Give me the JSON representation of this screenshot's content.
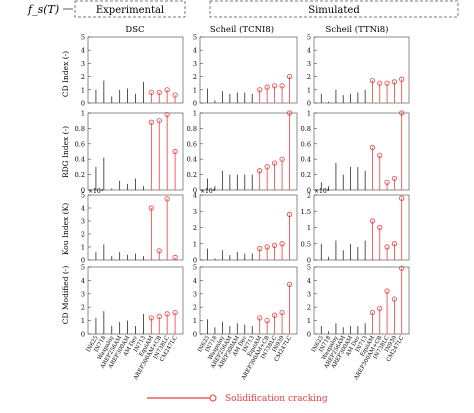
{
  "header": {
    "fs_label": "f_s(T)",
    "group_experimental": "Experimental",
    "group_simulated": "Simulated"
  },
  "columns": [
    "DSC",
    "Scheil (TCNI8)",
    "Scheil (TTNi8)"
  ],
  "row_labels": [
    "CD Index (-)",
    "RDG Index (-)",
    "Kou Index (K)",
    "CD Modified (-)"
  ],
  "exponent_labels": [
    "×10⁴",
    "×10⁴",
    "×10⁴"
  ],
  "alloys_experimental": [
    "IN625",
    "IN718",
    "Waspaloy",
    "AREP256AM",
    "AREP300AM",
    "AM Dev",
    "IN713",
    "EquiAM",
    "AREP300AM+CB",
    "IN738LC",
    "CM247LC"
  ],
  "alloys_simulated": [
    "IN625",
    "IN718",
    "Waspaloy",
    "AREP256AM",
    "AREP300AM",
    "AM Dev",
    "IN713",
    "EquiAM",
    "AREP300AM+CB",
    "IN738LC",
    "IN939",
    "CM247LC"
  ],
  "legend": {
    "label": "Solidification cracking",
    "color": "#e8403f"
  },
  "colors": {
    "non_cracking": "#2a2a2a",
    "cracking": "#e8403f"
  },
  "chart_data": [
    {
      "type": "stem",
      "row": "CD Index (-)",
      "col": "DSC",
      "ylim": [
        0,
        5
      ],
      "yticks": [
        0,
        1,
        2,
        3,
        4,
        5
      ],
      "values": [
        1.0,
        1.7,
        0.5,
        1.0,
        1.1,
        0.7,
        1.6,
        0.8,
        0.8,
        1.0,
        0.6
      ],
      "cracking": [
        false,
        false,
        false,
        false,
        false,
        false,
        false,
        true,
        true,
        true,
        true
      ]
    },
    {
      "type": "stem",
      "row": "CD Index (-)",
      "col": "Scheil (TCNI8)",
      "ylim": [
        0,
        5
      ],
      "yticks": [
        0,
        1,
        2,
        3,
        4,
        5
      ],
      "values": [
        1.1,
        0.2,
        0.9,
        0.7,
        0.8,
        0.8,
        0.7,
        1.0,
        1.2,
        1.3,
        1.3,
        2.0
      ],
      "cracking": [
        false,
        false,
        false,
        false,
        false,
        false,
        false,
        true,
        true,
        true,
        true,
        true
      ]
    },
    {
      "type": "stem",
      "row": "CD Index (-)",
      "col": "Scheil (TTNi8)",
      "ylim": [
        0,
        5
      ],
      "yticks": [
        0,
        1,
        2,
        3,
        4,
        5
      ],
      "values": [
        0.7,
        0.1,
        1.0,
        0.6,
        0.7,
        0.8,
        1.0,
        1.7,
        1.5,
        1.5,
        1.6,
        1.8
      ],
      "cracking": [
        false,
        false,
        false,
        false,
        false,
        false,
        false,
        true,
        true,
        true,
        true,
        true
      ]
    },
    {
      "type": "stem",
      "row": "RDG Index (-)",
      "col": "DSC",
      "ylim": [
        0,
        1
      ],
      "yticks": [
        0,
        0.2,
        0.4,
        0.6,
        0.8,
        1
      ],
      "values": [
        0.3,
        0.42,
        0.02,
        0.12,
        0.08,
        0.15,
        0.05,
        0.88,
        0.9,
        0.98,
        0.5
      ],
      "cracking": [
        false,
        false,
        false,
        false,
        false,
        false,
        false,
        true,
        true,
        true,
        true
      ]
    },
    {
      "type": "stem",
      "row": "RDG Index (-)",
      "col": "Scheil (TCNI8)",
      "ylim": [
        0,
        1
      ],
      "yticks": [
        0,
        0.2,
        0.4,
        0.6,
        0.8,
        1
      ],
      "values": [
        0.15,
        0.05,
        0.25,
        0.2,
        0.2,
        0.2,
        0.2,
        0.25,
        0.3,
        0.35,
        0.4,
        1.0
      ],
      "cracking": [
        false,
        false,
        false,
        false,
        false,
        false,
        false,
        true,
        true,
        true,
        true,
        true
      ]
    },
    {
      "type": "stem",
      "row": "RDG Index (-)",
      "col": "Scheil (TTNi8)",
      "ylim": [
        0,
        1
      ],
      "yticks": [
        0,
        0.2,
        0.4,
        0.6,
        0.8,
        1
      ],
      "values": [
        0.1,
        0.05,
        0.35,
        0.2,
        0.3,
        0.3,
        0.25,
        0.55,
        0.45,
        0.1,
        0.15,
        1.0
      ],
      "cracking": [
        false,
        false,
        false,
        false,
        false,
        false,
        false,
        true,
        true,
        true,
        true,
        true
      ]
    },
    {
      "type": "stem",
      "row": "Kou Index (K)",
      "col": "DSC",
      "ylim": [
        0,
        50000
      ],
      "yticks": [
        0,
        1,
        2,
        3,
        4,
        5
      ],
      "exponent": "×10⁴",
      "values": [
        6000,
        12000,
        3000,
        6000,
        4000,
        5000,
        3000,
        40000,
        7000,
        47000,
        2000
      ],
      "cracking": [
        false,
        false,
        false,
        false,
        false,
        false,
        false,
        true,
        true,
        true,
        true
      ]
    },
    {
      "type": "stem",
      "row": "Kou Index (K)",
      "col": "Scheil (TCNI8)",
      "ylim": [
        0,
        40000
      ],
      "yticks": [
        0,
        1,
        2,
        3,
        4
      ],
      "exponent": "×10⁴",
      "values": [
        7000,
        1000,
        6000,
        3000,
        5000,
        4000,
        4000,
        7000,
        8000,
        9000,
        10000,
        28000
      ],
      "cracking": [
        false,
        false,
        false,
        false,
        false,
        false,
        false,
        true,
        true,
        true,
        true,
        true
      ]
    },
    {
      "type": "stem",
      "row": "Kou Index (K)",
      "col": "Scheil (TTNi8)",
      "ylim": [
        0,
        20000
      ],
      "yticks": [
        0,
        0.5,
        1,
        1.5,
        2
      ],
      "exponent": "×10⁴",
      "values": [
        5000,
        1000,
        6000,
        3000,
        5000,
        4000,
        6000,
        12000,
        10000,
        4000,
        5000,
        19000
      ],
      "cracking": [
        false,
        false,
        false,
        false,
        false,
        false,
        false,
        true,
        true,
        true,
        true,
        true
      ]
    },
    {
      "type": "stem",
      "row": "CD Modified (-)",
      "col": "DSC",
      "ylim": [
        0,
        5
      ],
      "yticks": [
        0,
        1,
        2,
        3,
        4,
        5
      ],
      "values": [
        1.2,
        1.7,
        0.6,
        0.9,
        1.0,
        0.6,
        1.5,
        1.2,
        1.3,
        1.5,
        1.6
      ],
      "cracking": [
        false,
        false,
        false,
        false,
        false,
        false,
        false,
        true,
        true,
        true,
        true
      ]
    },
    {
      "type": "stem",
      "row": "CD Modified (-)",
      "col": "Scheil (TCNI8)",
      "ylim": [
        0,
        5
      ],
      "yticks": [
        0,
        1,
        2,
        3,
        4,
        5
      ],
      "values": [
        1.1,
        0.5,
        0.9,
        0.6,
        0.8,
        0.7,
        0.6,
        1.2,
        1.0,
        1.4,
        1.6,
        3.7
      ],
      "cracking": [
        false,
        false,
        false,
        false,
        false,
        false,
        false,
        true,
        true,
        true,
        true,
        true
      ]
    },
    {
      "type": "stem",
      "row": "CD Modified (-)",
      "col": "Scheil (TTNi8)",
      "ylim": [
        0,
        5
      ],
      "yticks": [
        0,
        1,
        2,
        3,
        4,
        5
      ],
      "values": [
        0.6,
        0.2,
        0.8,
        0.5,
        0.6,
        0.6,
        0.8,
        1.6,
        1.9,
        3.2,
        2.6,
        4.9
      ],
      "cracking": [
        false,
        false,
        false,
        false,
        false,
        false,
        false,
        true,
        true,
        true,
        true,
        true
      ]
    }
  ]
}
